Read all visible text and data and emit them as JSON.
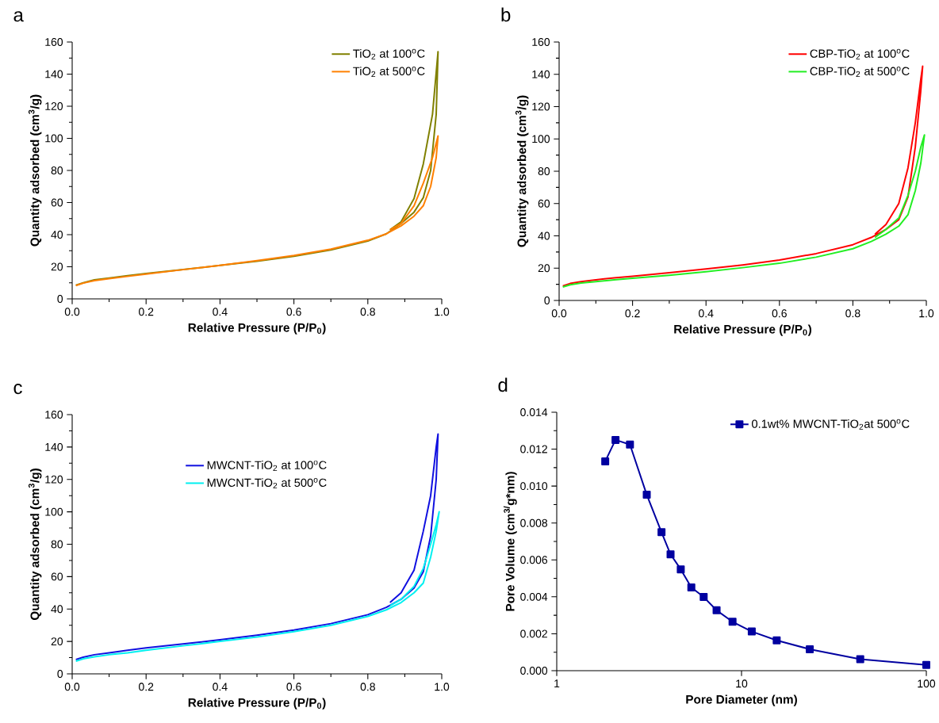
{
  "chart_data": [
    {
      "type": "line",
      "title": "a",
      "xlabel": "Relative Pressure (P/P$_{0}$)",
      "ylabel": "Quantity adsorbed (cm$^{3}$/g)",
      "legend": "top right",
      "xlim": [
        0,
        1
      ],
      "ylim": [
        0,
        160
      ],
      "xticks": [
        {
          "value": 0,
          "label": "0.0"
        },
        {
          "value": 0.2,
          "label": "0.2"
        },
        {
          "value": 0.4,
          "label": "0.4"
        },
        {
          "value": 0.6,
          "label": "0.6"
        },
        {
          "value": 0.8,
          "label": "0.8"
        },
        {
          "value": 1,
          "label": "1.0"
        }
      ],
      "yticks": [
        0,
        20,
        40,
        60,
        80,
        100,
        120,
        140,
        160
      ],
      "series": [
        {
          "name": "TiO$_{2}$ at 100$^{o}$C",
          "color": "#808000",
          "x": [
            0.01,
            0.03,
            0.06,
            0.1,
            0.15,
            0.2,
            0.3,
            0.4,
            0.5,
            0.6,
            0.7,
            0.8,
            0.85,
            0.89,
            0.925,
            0.95,
            0.97,
            0.985,
            0.99,
            0.975,
            0.95,
            0.925,
            0.89,
            0.86
          ],
          "values": [
            8.5,
            10,
            11.8,
            13,
            14.5,
            15.8,
            18.3,
            20.8,
            23.5,
            26.5,
            30.5,
            36,
            40.5,
            47,
            54,
            63,
            80,
            115,
            154,
            115,
            84,
            62.5,
            48,
            43
          ]
        },
        {
          "name": "TiO$_{2}$ at 500$^{o}$C",
          "color": "#ff8000",
          "x": [
            0.01,
            0.03,
            0.06,
            0.1,
            0.15,
            0.2,
            0.3,
            0.4,
            0.5,
            0.6,
            0.7,
            0.8,
            0.85,
            0.89,
            0.925,
            0.95,
            0.97,
            0.985,
            0.99,
            0.975,
            0.95,
            0.925,
            0.89,
            0.86
          ],
          "values": [
            8.3,
            9.8,
            11.3,
            12.6,
            14,
            15.4,
            18.2,
            20.9,
            23.8,
            27,
            31,
            36.5,
            40.5,
            45.5,
            51.5,
            58,
            70,
            88,
            101.5,
            88,
            72,
            58,
            47,
            43
          ]
        }
      ]
    },
    {
      "type": "line",
      "title": "b",
      "xlabel": "Relative Pressure (P/P$_{0}$)",
      "ylabel": "Quantity adsorbed (cm$^{3}$/g)",
      "legend": "top right",
      "xlim": [
        0,
        1
      ],
      "ylim": [
        0,
        160
      ],
      "xticks": [
        {
          "value": 0,
          "label": "0.0"
        },
        {
          "value": 0.2,
          "label": "0.2"
        },
        {
          "value": 0.4,
          "label": "0.4"
        },
        {
          "value": 0.6,
          "label": "0.6"
        },
        {
          "value": 0.8,
          "label": "0.8"
        },
        {
          "value": 1,
          "label": "1.0"
        }
      ],
      "yticks": [
        0,
        20,
        40,
        60,
        80,
        100,
        120,
        140,
        160
      ],
      "series": [
        {
          "name": "CBP-TiO$_{2}$ at 100$^{o}$C",
          "color": "#ff0000",
          "x": [
            0.01,
            0.03,
            0.06,
            0.1,
            0.15,
            0.2,
            0.3,
            0.4,
            0.5,
            0.6,
            0.7,
            0.8,
            0.85,
            0.89,
            0.925,
            0.95,
            0.97,
            0.985,
            0.99,
            0.985,
            0.97,
            0.95,
            0.925,
            0.89,
            0.86
          ],
          "values": [
            9,
            10.5,
            11.7,
            12.8,
            14,
            15,
            17.2,
            19.5,
            22,
            25,
            29,
            34.5,
            39,
            44,
            50,
            64,
            95,
            130,
            145,
            137,
            110,
            82,
            60,
            47,
            41
          ]
        },
        {
          "name": "CBP-TiO$_{2}$ at 500$^{o}$C",
          "color": "#22ee22",
          "x": [
            0.01,
            0.03,
            0.06,
            0.1,
            0.15,
            0.2,
            0.3,
            0.4,
            0.5,
            0.6,
            0.7,
            0.8,
            0.85,
            0.89,
            0.925,
            0.95,
            0.97,
            0.985,
            0.995,
            0.985,
            0.97,
            0.95,
            0.925,
            0.89,
            0.86
          ],
          "values": [
            8.3,
            9.7,
            10.8,
            11.7,
            12.7,
            13.7,
            15.6,
            17.8,
            20.3,
            23,
            26.8,
            32,
            36.5,
            41,
            46,
            53,
            68,
            85,
            102.5,
            95,
            80,
            65,
            51,
            44,
            39
          ]
        }
      ]
    },
    {
      "type": "line",
      "title": "c",
      "xlabel": "Relative Pressure (P/P$_{0}$)",
      "ylabel": "Quantity adsorbed (cm$^{3}$/g)",
      "legend": "top",
      "xlim": [
        0,
        1
      ],
      "ylim": [
        0,
        160
      ],
      "xticks": [
        {
          "value": 0,
          "label": "0.0"
        },
        {
          "value": 0.2,
          "label": "0.2"
        },
        {
          "value": 0.4,
          "label": "0.4"
        },
        {
          "value": 0.6,
          "label": "0.6"
        },
        {
          "value": 0.8,
          "label": "0.8"
        },
        {
          "value": 1,
          "label": "1.0"
        }
      ],
      "yticks": [
        0,
        20,
        40,
        60,
        80,
        100,
        120,
        140,
        160
      ],
      "series": [
        {
          "name": "MWCNT-TiO$_{2}$ at 100$^{o}$C",
          "color": "#1010e0",
          "x": [
            0.01,
            0.03,
            0.06,
            0.1,
            0.15,
            0.2,
            0.3,
            0.4,
            0.5,
            0.6,
            0.7,
            0.8,
            0.85,
            0.89,
            0.925,
            0.95,
            0.97,
            0.985,
            0.99,
            0.985,
            0.97,
            0.95,
            0.925,
            0.89,
            0.86
          ],
          "values": [
            8.8,
            10.3,
            11.8,
            13,
            14.5,
            16,
            18.5,
            21,
            23.8,
            27,
            31,
            36.5,
            41,
            46,
            53,
            63,
            85,
            120,
            148,
            140,
            110,
            88,
            64,
            50,
            44
          ]
        },
        {
          "name": "MWCNT-TiO$_{2}$ at 500$^{o}$C",
          "color": "#00f0f0",
          "x": [
            0.01,
            0.03,
            0.06,
            0.1,
            0.15,
            0.2,
            0.3,
            0.4,
            0.5,
            0.6,
            0.7,
            0.8,
            0.85,
            0.89,
            0.925,
            0.95,
            0.97,
            0.985,
            0.993,
            0.985,
            0.97,
            0.95,
            0.925,
            0.89,
            0.86
          ],
          "values": [
            7.8,
            9.3,
            10.5,
            11.8,
            13,
            14.5,
            17.3,
            20,
            22.8,
            26,
            30,
            35.5,
            39.5,
            44,
            50,
            56,
            72,
            88,
            100,
            92,
            80,
            65,
            54,
            46,
            42
          ]
        }
      ]
    },
    {
      "type": "line",
      "title": "d",
      "xlabel": "Pore Diameter (nm)",
      "ylabel": "Pore Volume (cm$^{3/}$g*nm)",
      "legend": "top right",
      "log": "x",
      "marker": "square",
      "xlim": [
        1,
        100
      ],
      "ylim": [
        0,
        0.014
      ],
      "xticks": [
        1,
        10,
        100
      ],
      "yticks": [
        {
          "value": 0,
          "label": "0.000"
        },
        {
          "value": 0.002,
          "label": "0.002"
        },
        {
          "value": 0.004,
          "label": "0.004"
        },
        {
          "value": 0.006,
          "label": "0.006"
        },
        {
          "value": 0.008,
          "label": "0.008"
        },
        {
          "value": 0.01,
          "label": "0.010"
        },
        {
          "value": 0.012,
          "label": "0.012"
        },
        {
          "value": 0.014,
          "label": "0.014"
        }
      ],
      "series": [
        {
          "name": "0.1wt% MWCNT-TiO$_{2}$at 500$^{o}$C",
          "color": "#0000a0",
          "x": [
            1.83,
            2.08,
            2.49,
            3.07,
            3.69,
            4.13,
            4.69,
            5.35,
            6.24,
            7.33,
            8.94,
            11.36,
            15.5,
            23.4,
            43.9,
            100
          ],
          "values": [
            0.01134,
            0.0125,
            0.01225,
            0.00953,
            0.0075,
            0.0063,
            0.00549,
            0.00451,
            0.00399,
            0.00327,
            0.00265,
            0.00212,
            0.00164,
            0.00116,
            0.00062,
            0.00031
          ]
        }
      ]
    }
  ]
}
